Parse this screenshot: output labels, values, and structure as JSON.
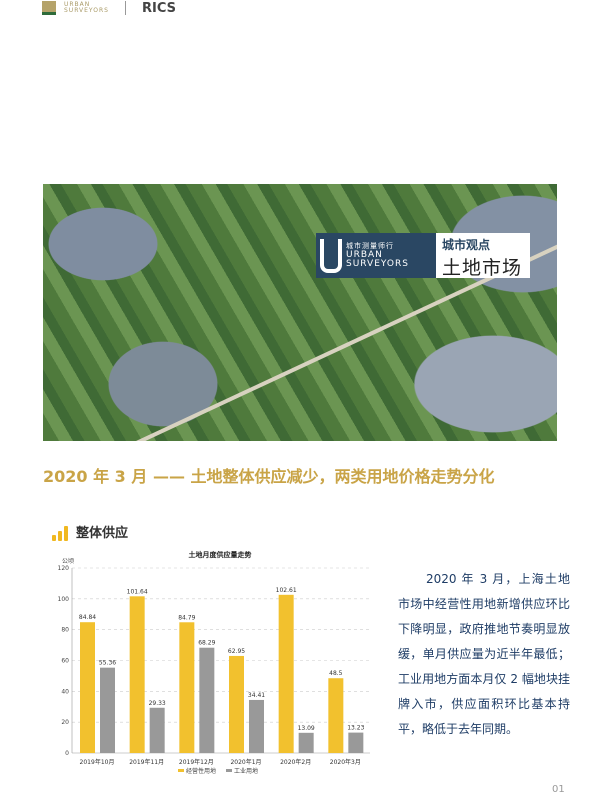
{
  "header": {
    "logo_line1": "URBAN",
    "logo_line2": "SURVEYORS",
    "partner": "RICS"
  },
  "banner": {
    "brand_cn": "城市测量师行",
    "brand_en1": "URBAN",
    "brand_en2": "SURVEYORS",
    "column": "城市观点",
    "topic": "土地市场"
  },
  "headline": "2020 年 3 月 —— 土地整体供应减少，两类用地价格走势分化",
  "section": {
    "title": "整体供应"
  },
  "chart_data": {
    "type": "bar",
    "title": "土地月度供应量走势",
    "ylabel": "公顷",
    "ylim": [
      0,
      120
    ],
    "yticks": [
      0,
      20,
      40,
      60,
      80,
      100,
      120
    ],
    "grid": true,
    "legend_placement": "bottom",
    "categories": [
      "2019年10月",
      "2019年11月",
      "2019年12月",
      "2020年1月",
      "2020年2月",
      "2020年3月"
    ],
    "series": [
      {
        "name": "经营性用地",
        "color": "#f2c12e",
        "values": [
          84.84,
          101.64,
          84.79,
          62.95,
          102.61,
          48.5
        ]
      },
      {
        "name": "工业用地",
        "color": "#999999",
        "values": [
          55.36,
          29.33,
          68.29,
          34.41,
          13.09,
          13.23
        ]
      }
    ]
  },
  "body": "2020 年 3 月，上海土地市场中经营性用地新增供应环比下降明显，政府推地节奏明显放缓，单月供应量为近半年最低；工业用地方面本月仅 2 幅地块挂牌入市，供应面积环比基本持平，略低于去年同期。",
  "page_number": "01"
}
